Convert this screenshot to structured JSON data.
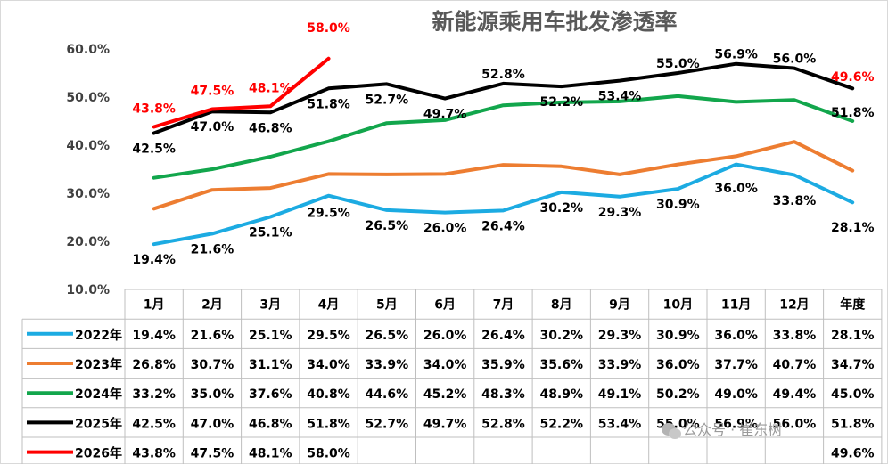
{
  "chart_data": {
    "type": "line",
    "title": "新能源乘用车批发渗透率",
    "categories": [
      "1月",
      "2月",
      "3月",
      "4月",
      "5月",
      "6月",
      "7月",
      "8月",
      "9月",
      "10月",
      "11月",
      "12月",
      "年度"
    ],
    "y_ticks": [
      "10.0%",
      "20.0%",
      "30.0%",
      "40.0%",
      "50.0%",
      "60.0%"
    ],
    "ylim": [
      10,
      60
    ],
    "grid": false,
    "legend": "data-table",
    "series": [
      {
        "name": "2022年",
        "color": "#1cabe2",
        "values": [
          19.4,
          21.6,
          25.1,
          29.5,
          26.5,
          26.0,
          26.4,
          30.2,
          29.3,
          30.9,
          36.0,
          33.8,
          28.1
        ],
        "labels": [
          "19.4%",
          "21.6%",
          "25.1%",
          "29.5%",
          "26.5%",
          "26.0%",
          "26.4%",
          "30.2%",
          "29.3%",
          "30.9%",
          "36.0%",
          "33.8%",
          "28.1%"
        ]
      },
      {
        "name": "2023年",
        "color": "#ed7d31",
        "values": [
          26.8,
          30.7,
          31.1,
          34.0,
          33.9,
          34.0,
          35.9,
          35.6,
          33.9,
          36.0,
          37.7,
          40.7,
          34.7
        ],
        "labels": [
          "26.8%",
          "30.7%",
          "31.1%",
          "34.0%",
          "33.9%",
          "34.0%",
          "35.9%",
          "35.6%",
          "33.9%",
          "36.0%",
          "37.7%",
          "40.7%",
          "34.7%"
        ]
      },
      {
        "name": "2024年",
        "color": "#12a64c",
        "values": [
          33.2,
          35.0,
          37.6,
          40.8,
          44.6,
          45.2,
          48.3,
          48.9,
          49.1,
          50.2,
          49.0,
          49.4,
          45.0
        ],
        "labels": [
          "33.2%",
          "35.0%",
          "37.6%",
          "40.8%",
          "44.6%",
          "45.2%",
          "48.3%",
          "48.9%",
          "49.1%",
          "50.2%",
          "49.0%",
          "49.4%",
          "45.0%"
        ]
      },
      {
        "name": "2025年",
        "color": "#000000",
        "values": [
          42.5,
          47.0,
          46.8,
          51.8,
          52.7,
          49.7,
          52.8,
          52.2,
          53.4,
          55.0,
          56.9,
          56.0,
          51.8
        ],
        "labels": [
          "42.5%",
          "47.0%",
          "46.8%",
          "51.8%",
          "52.7%",
          "49.7%",
          "52.8%",
          "52.2%",
          "53.4%",
          "55.0%",
          "56.9%",
          "56.0%",
          "51.8%"
        ]
      },
      {
        "name": "2026年",
        "color": "#ff0000",
        "values": [
          43.8,
          47.5,
          48.1,
          58.0,
          null,
          null,
          null,
          null,
          null,
          null,
          null,
          null,
          49.6
        ],
        "labels": [
          "43.8%",
          "47.5%",
          "48.1%",
          "58.0%",
          "",
          "",
          "",
          "",
          "",
          "",
          "",
          "",
          "49.6%"
        ]
      }
    ],
    "data_labels": [
      {
        "series": 0,
        "idx": 0,
        "text": "19.4%",
        "color": "#000"
      },
      {
        "series": 0,
        "idx": 1,
        "text": "21.6%",
        "color": "#000"
      },
      {
        "series": 0,
        "idx": 2,
        "text": "25.1%",
        "color": "#000"
      },
      {
        "series": 0,
        "idx": 3,
        "text": "29.5%",
        "color": "#000"
      },
      {
        "series": 0,
        "idx": 4,
        "text": "26.5%",
        "color": "#000"
      },
      {
        "series": 0,
        "idx": 5,
        "text": "26.0%",
        "color": "#000"
      },
      {
        "series": 0,
        "idx": 6,
        "text": "26.4%",
        "color": "#000"
      },
      {
        "series": 0,
        "idx": 7,
        "text": "30.2%",
        "color": "#000"
      },
      {
        "series": 0,
        "idx": 8,
        "text": "29.3%",
        "color": "#000"
      },
      {
        "series": 0,
        "idx": 9,
        "text": "30.9%",
        "color": "#000"
      },
      {
        "series": 0,
        "idx": 10,
        "text": "36.0%",
        "color": "#000"
      },
      {
        "series": 0,
        "idx": 11,
        "text": "33.8%",
        "color": "#000"
      },
      {
        "series": 0,
        "idx": 12,
        "text": "28.1%",
        "color": "#000"
      },
      {
        "series": 3,
        "idx": 0,
        "text": "42.5%",
        "color": "#000"
      },
      {
        "series": 3,
        "idx": 1,
        "text": "47.0%",
        "color": "#000"
      },
      {
        "series": 3,
        "idx": 2,
        "text": "46.8%",
        "color": "#000"
      },
      {
        "series": 3,
        "idx": 3,
        "text": "51.8%",
        "color": "#000"
      },
      {
        "series": 3,
        "idx": 4,
        "text": "52.7%",
        "color": "#000"
      },
      {
        "series": 3,
        "idx": 5,
        "text": "49.7%",
        "color": "#000"
      },
      {
        "series": 3,
        "idx": 6,
        "text": "52.8%",
        "color": "#000"
      },
      {
        "series": 3,
        "idx": 7,
        "text": "52.2%",
        "color": "#000"
      },
      {
        "series": 3,
        "idx": 8,
        "text": "53.4%",
        "color": "#000"
      },
      {
        "series": 3,
        "idx": 9,
        "text": "55.0%",
        "color": "#000"
      },
      {
        "series": 3,
        "idx": 10,
        "text": "56.9%",
        "color": "#000"
      },
      {
        "series": 3,
        "idx": 11,
        "text": "56.0%",
        "color": "#000"
      },
      {
        "series": 3,
        "idx": 12,
        "text": "51.8%",
        "color": "#000"
      },
      {
        "series": 4,
        "idx": 0,
        "text": "43.8%",
        "color": "#ff0000"
      },
      {
        "series": 4,
        "idx": 1,
        "text": "47.5%",
        "color": "#ff0000"
      },
      {
        "series": 4,
        "idx": 2,
        "text": "48.1%",
        "color": "#ff0000"
      },
      {
        "series": 4,
        "idx": 3,
        "text": "58.0%",
        "color": "#ff0000"
      },
      {
        "series": 4,
        "idx": 12,
        "text": "49.6%",
        "color": "#ff0000"
      }
    ]
  },
  "watermark": "公众号 · 崔东树"
}
